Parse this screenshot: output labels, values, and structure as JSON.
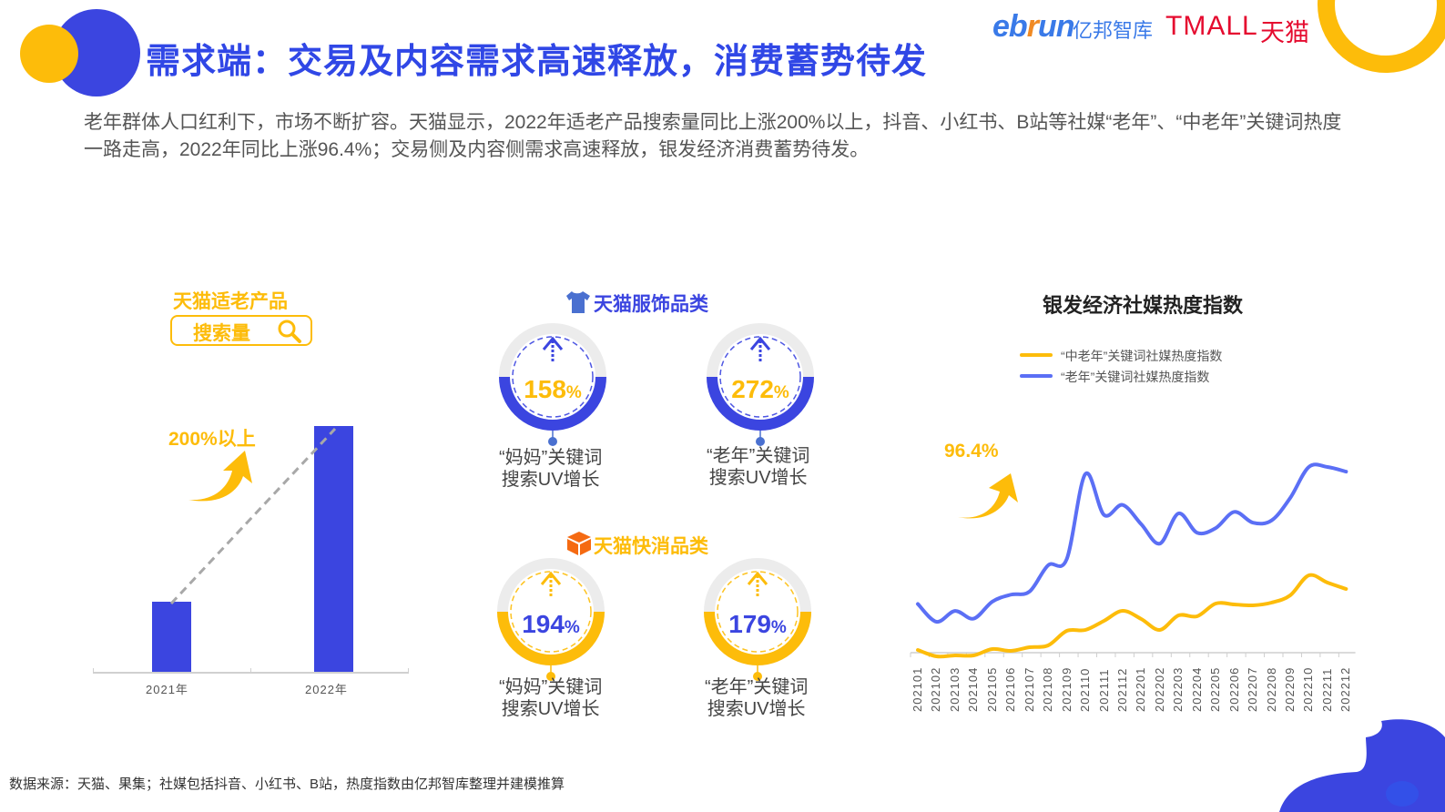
{
  "header": {
    "title": "需求端：交易及内容需求高速释放，消费蓄势待发",
    "logos": {
      "ebrun": "eb",
      "ebrun_r": "r",
      "ebrun_tail": "un",
      "ebrun_cn": "亿邦智库",
      "tmall": "TMALL",
      "tmall_cn": "天猫"
    }
  },
  "intro": {
    "text": "老年群体人口红利下，市场不断扩容。天猫显示，2022年适老产品搜索量同比上涨200%以上，抖音、小红书、B站等社媒“老年”、“中老年”关键词热度一路走高，2022年同比上涨96.4%；交易侧及内容侧需求高速释放，银发经济消费蓄势待发。"
  },
  "left_panel": {
    "title": "天猫适老产品",
    "search_label": "搜索量",
    "search_icon": "search-icon",
    "growth_label": "200%以上",
    "growth_icon": "curved-arrow-up-icon"
  },
  "middle_panel": {
    "apparel": {
      "title": "天猫服饰品类",
      "icon": "tshirt-icon",
      "items": [
        {
          "value": "158",
          "unit": "%",
          "label_line1": "“妈妈”关键词",
          "label_line2": "搜索UV增长"
        },
        {
          "value": "272",
          "unit": "%",
          "label_line1": "“老年”关键词",
          "label_line2": "搜索UV增长"
        }
      ]
    },
    "fmcg": {
      "title": "天猫快消品类",
      "icon": "cube-box-icon",
      "items": [
        {
          "value": "194",
          "unit": "%",
          "label_line1": "“妈妈”关键词",
          "label_line2": "搜索UV增长"
        },
        {
          "value": "179",
          "unit": "%",
          "label_line1": "“老年”关键词",
          "label_line2": "搜索UV增长"
        }
      ]
    }
  },
  "right_panel": {
    "title": "银发经济社媒热度指数",
    "growth_label": "96.4%",
    "legend": [
      {
        "label": "“中老年”关键词社媒热度指数",
        "color": "#fdbc0a"
      },
      {
        "label": "“老年”关键词社媒热度指数",
        "color": "#5b6ff5"
      }
    ]
  },
  "footer": {
    "source": "数据来源：天猫、果集；社媒包括抖音、小红书、B站，热度指数由亿邦智库整理并建模推算"
  },
  "colors": {
    "brand_blue": "#3b45e0",
    "title_blue": "#3047e6",
    "accent_yellow": "#fdbc0a",
    "line_blue": "#5b6ff5",
    "tmall_red": "#e50b2f"
  },
  "chart_data": [
    {
      "type": "bar",
      "title": "天猫适老产品搜索量",
      "categories": [
        "2021年",
        "2022年"
      ],
      "values": [
        1,
        3
      ],
      "annotations": [
        "200%以上"
      ],
      "xlabel": "",
      "ylabel": "",
      "grid": false,
      "trend_line": "dashed gray from 2021 top to 2022 top"
    },
    {
      "type": "line",
      "title": "银发经济社媒热度指数",
      "categories": [
        "202101",
        "202102",
        "202103",
        "202104",
        "202105",
        "202106",
        "202107",
        "202108",
        "202109",
        "202110",
        "202111",
        "202112",
        "202201",
        "202202",
        "202203",
        "202204",
        "202205",
        "202206",
        "202207",
        "202208",
        "202209",
        "202210",
        "202211",
        "202212"
      ],
      "series": [
        {
          "name": "“中老年”关键词社媒热度指数",
          "color": "#fdbc0a",
          "values": [
            7,
            0,
            1,
            1,
            8,
            6,
            10,
            12,
            28,
            29,
            39,
            50,
            41,
            29,
            45,
            44,
            58,
            57,
            56,
            59,
            67,
            89,
            81,
            74
          ]
        },
        {
          "name": "“老年”关键词社媒热度指数",
          "color": "#5b6ff5",
          "values": [
            57,
            34,
            48,
            38,
            60,
            69,
            73,
            107,
            115,
            225,
            172,
            185,
            160,
            135,
            174,
            149,
            155,
            176,
            162,
            165,
            194,
            234,
            234,
            228
          ]
        }
      ],
      "annotations": [
        "96.4%"
      ],
      "legend_position": "top-left",
      "grid": false,
      "xlabel": "",
      "ylabel": ""
    }
  ]
}
